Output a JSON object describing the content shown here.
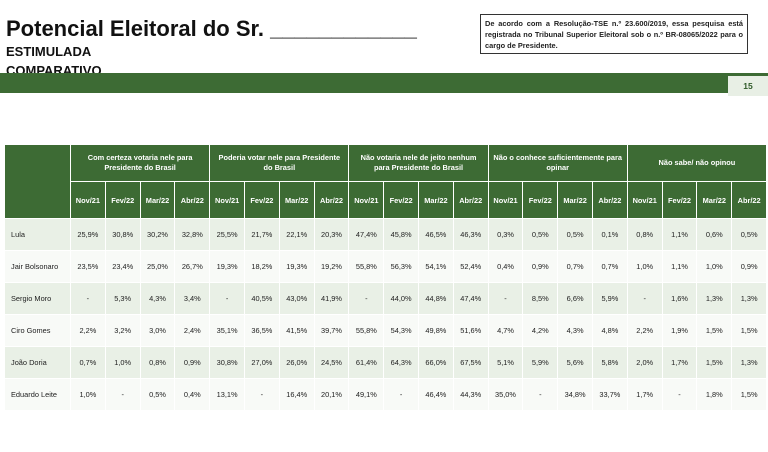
{
  "header": {
    "title": "Potencial Eleitoral do Sr. ____________",
    "subtitle1": "ESTIMULADA",
    "subtitle2": "COMPARATIVO",
    "tse_note": "De acordo com a Resolução-TSE n.º 23.600/2019, essa pesquisa está registrada no Tribunal Superior Eleitoral sob o n.º BR-08065/2022 para o cargo de Presidente.",
    "page_number": "15"
  },
  "table": {
    "groups": [
      "Com certeza votaria nele para Presidente do Brasil",
      "Poderia votar nele para Presidente do Brasil",
      "Não votaria nele de jeito nenhum para Presidente do Brasil",
      "Não o conhece suficientemente para opinar",
      "Não sabe/ não opinou"
    ],
    "periods": [
      "Nov/21",
      "Fev/22",
      "Mar/22",
      "Abr/22"
    ],
    "rows": [
      {
        "name": "Lula",
        "values": [
          "25,9%",
          "30,8%",
          "30,2%",
          "32,8%",
          "25,5%",
          "21,7%",
          "22,1%",
          "20,3%",
          "47,4%",
          "45,8%",
          "46,5%",
          "46,3%",
          "0,3%",
          "0,5%",
          "0,5%",
          "0,1%",
          "0,8%",
          "1,1%",
          "0,6%",
          "0,5%"
        ]
      },
      {
        "name": "Jair Bolsonaro",
        "values": [
          "23,5%",
          "23,4%",
          "25,0%",
          "26,7%",
          "19,3%",
          "18,2%",
          "19,3%",
          "19,2%",
          "55,8%",
          "56,3%",
          "54,1%",
          "52,4%",
          "0,4%",
          "0,9%",
          "0,7%",
          "0,7%",
          "1,0%",
          "1,1%",
          "1,0%",
          "0,9%"
        ]
      },
      {
        "name": "Sergio Moro",
        "values": [
          "-",
          "5,3%",
          "4,3%",
          "3,4%",
          "-",
          "40,5%",
          "43,0%",
          "41,9%",
          "-",
          "44,0%",
          "44,8%",
          "47,4%",
          "-",
          "8,5%",
          "6,6%",
          "5,9%",
          "-",
          "1,6%",
          "1,3%",
          "1,3%"
        ]
      },
      {
        "name": "Ciro Gomes",
        "values": [
          "2,2%",
          "3,2%",
          "3,0%",
          "2,4%",
          "35,1%",
          "36,5%",
          "41,5%",
          "39,7%",
          "55,8%",
          "54,3%",
          "49,8%",
          "51,6%",
          "4,7%",
          "4,2%",
          "4,3%",
          "4,8%",
          "2,2%",
          "1,9%",
          "1,5%",
          "1,5%"
        ]
      },
      {
        "name": "João Doria",
        "values": [
          "0,7%",
          "1,0%",
          "0,8%",
          "0,9%",
          "30,8%",
          "27,0%",
          "26,0%",
          "24,5%",
          "61,4%",
          "64,3%",
          "66,0%",
          "67,5%",
          "5,1%",
          "5,9%",
          "5,6%",
          "5,8%",
          "2,0%",
          "1,7%",
          "1,5%",
          "1,3%"
        ]
      },
      {
        "name": "Eduardo Leite",
        "values": [
          "1,0%",
          "-",
          "0,5%",
          "0,4%",
          "13,1%",
          "-",
          "16,4%",
          "20,1%",
          "49,1%",
          "-",
          "46,4%",
          "44,3%",
          "35,0%",
          "-",
          "34,8%",
          "33,7%",
          "1,7%",
          "-",
          "1,8%",
          "1,5%"
        ]
      }
    ]
  },
  "colors": {
    "header_green": "#3d6b34",
    "row_light": "#e9f0e6",
    "row_white": "#f8faf7"
  }
}
